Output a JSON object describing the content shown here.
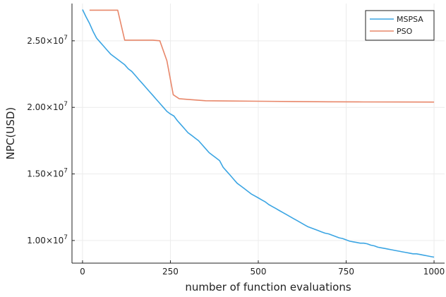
{
  "chart_data": {
    "type": "line",
    "xlabel": "number of function evaluations",
    "ylabel": "NPC(USD)",
    "xlim": [
      -30,
      1030
    ],
    "ylim": [
      8300000,
      27800000
    ],
    "x_ticks": [
      {
        "value": 0,
        "label": "0"
      },
      {
        "value": 250,
        "label": "250"
      },
      {
        "value": 500,
        "label": "500"
      },
      {
        "value": 750,
        "label": "750"
      },
      {
        "value": 1000,
        "label": "1000"
      }
    ],
    "y_ticks": [
      {
        "value": 10000000,
        "mantissa": "1.00",
        "exp": "7"
      },
      {
        "value": 15000000,
        "mantissa": "1.50",
        "exp": "7"
      },
      {
        "value": 20000000,
        "mantissa": "2.00",
        "exp": "7"
      },
      {
        "value": 25000000,
        "mantissa": "2.50",
        "exp": "7"
      }
    ],
    "grid": true,
    "legend_position": "top-right",
    "series": [
      {
        "name": "MSPSA",
        "color": "#3ba5e3",
        "x": [
          0,
          10,
          20,
          30,
          40,
          50,
          60,
          70,
          80,
          90,
          100,
          110,
          120,
          130,
          140,
          150,
          160,
          170,
          180,
          190,
          200,
          210,
          220,
          230,
          240,
          250,
          260,
          270,
          280,
          290,
          300,
          310,
          320,
          330,
          340,
          350,
          360,
          370,
          380,
          390,
          400,
          410,
          420,
          430,
          440,
          450,
          460,
          470,
          480,
          490,
          500,
          510,
          520,
          530,
          540,
          550,
          560,
          570,
          580,
          590,
          600,
          610,
          620,
          630,
          640,
          650,
          660,
          670,
          680,
          690,
          700,
          710,
          720,
          730,
          740,
          750,
          760,
          770,
          780,
          790,
          800,
          810,
          820,
          830,
          840,
          850,
          860,
          870,
          880,
          890,
          900,
          910,
          920,
          930,
          940,
          950,
          960,
          970,
          980,
          990,
          1000
        ],
        "y": [
          27350000,
          26800000,
          26300000,
          25700000,
          25200000,
          24900000,
          24600000,
          24300000,
          24000000,
          23800000,
          23600000,
          23400000,
          23200000,
          22900000,
          22700000,
          22400000,
          22100000,
          21800000,
          21500000,
          21200000,
          20900000,
          20600000,
          20300000,
          20000000,
          19700000,
          19500000,
          19350000,
          19000000,
          18700000,
          18400000,
          18100000,
          17900000,
          17700000,
          17500000,
          17200000,
          16900000,
          16600000,
          16400000,
          16200000,
          16000000,
          15500000,
          15200000,
          14900000,
          14600000,
          14300000,
          14100000,
          13900000,
          13700000,
          13500000,
          13350000,
          13200000,
          13050000,
          12900000,
          12700000,
          12550000,
          12400000,
          12250000,
          12100000,
          11950000,
          11800000,
          11650000,
          11500000,
          11350000,
          11200000,
          11050000,
          10950000,
          10850000,
          10750000,
          10650000,
          10550000,
          10500000,
          10400000,
          10300000,
          10200000,
          10150000,
          10050000,
          9950000,
          9900000,
          9850000,
          9800000,
          9800000,
          9750000,
          9650000,
          9600000,
          9500000,
          9450000,
          9400000,
          9350000,
          9300000,
          9250000,
          9200000,
          9150000,
          9100000,
          9050000,
          9000000,
          9000000,
          8950000,
          8900000,
          8850000,
          8800000,
          8750000
        ]
      },
      {
        "name": "PSO",
        "color": "#e8876a",
        "x": [
          20,
          50,
          100,
          120,
          160,
          200,
          220,
          240,
          258,
          275,
          300,
          350,
          400,
          500,
          600,
          700,
          800,
          900,
          1000
        ],
        "y": [
          27300000,
          27300000,
          27300000,
          25050000,
          25050000,
          25050000,
          25000000,
          23500000,
          20950000,
          20650000,
          20600000,
          20500000,
          20480000,
          20460000,
          20440000,
          20420000,
          20410000,
          20405000,
          20400000
        ]
      }
    ]
  }
}
